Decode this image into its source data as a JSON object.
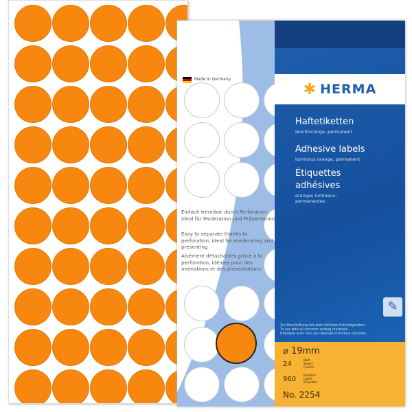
{
  "back_sheet": {
    "rows": 10,
    "cols": 5,
    "dot_color": "#f7870f"
  },
  "package": {
    "brand": "HERMA",
    "made_in": "Made in Germany",
    "title_de": "Haftetiketten",
    "sub_de": "leuchtorange, permanent",
    "title_en": "Adhesive labels",
    "sub_en": "luminous orange, permanent",
    "title_fr_1": "Étiquettes",
    "title_fr_2": "adhésives",
    "sub_fr_1": "oranges lumineux,",
    "sub_fr_2": "permanentes",
    "desc_de": "Einfach trennbar durch Perforation, ideal für Moderation und Präsentation",
    "desc_en": "Easy to separate thanks to perforation, ideal for moderating and presenting",
    "desc_fr": "Aisément détachables grâce à la perforation, idéales pour des animations et des présentations",
    "writing_de": "Zur Beschriftung mit allen üblichen Schreibgeräten.",
    "writing_en": "To use with all common writing materials.",
    "writing_fr": "Utilisable avec tous les ustensils d'écriture courants.",
    "diameter": "⌀ 19mm",
    "sheets": "24",
    "sheets_label": "Blatt Sheets Feuilles",
    "labels": "960",
    "labels_label": "Etiketten Labels Etiquettes",
    "number": "No. 2254",
    "colors": {
      "blue": "#1f5fae",
      "orange": "#f7b233",
      "dot": "#f7870f"
    }
  }
}
